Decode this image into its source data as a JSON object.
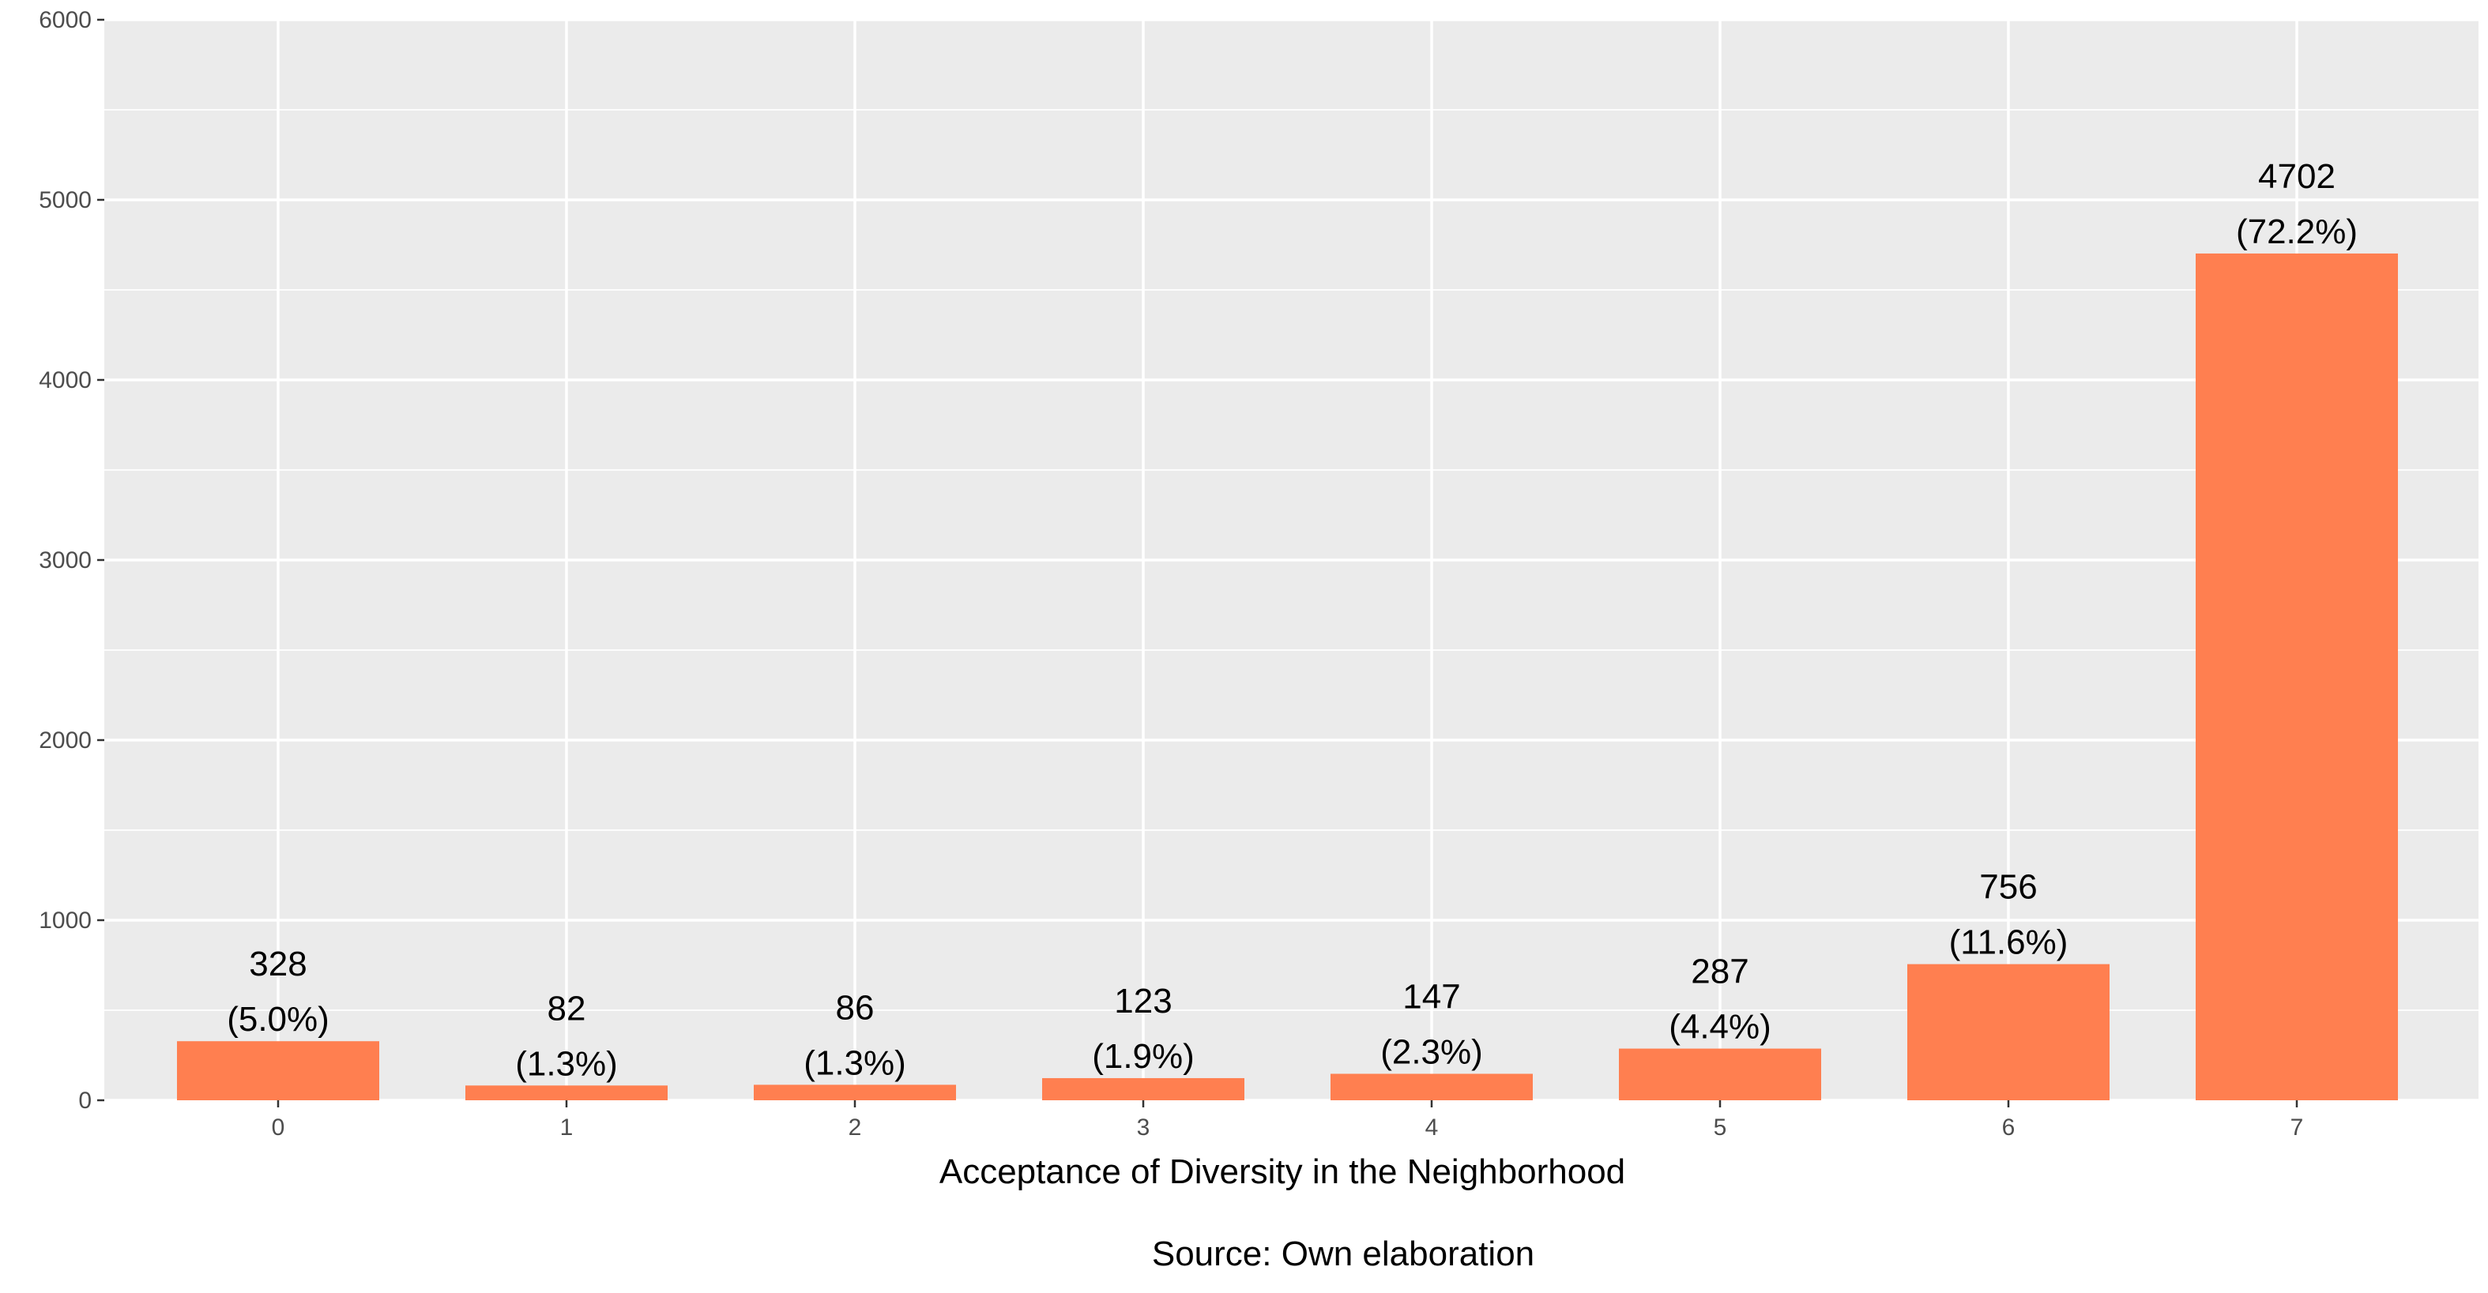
{
  "chart_data": {
    "type": "bar",
    "categories": [
      "0",
      "1",
      "2",
      "3",
      "4",
      "5",
      "6",
      "7"
    ],
    "values": [
      328,
      82,
      86,
      123,
      147,
      287,
      756,
      4702
    ],
    "percent_labels": [
      "(5.0%)",
      "(1.3%)",
      "(1.3%)",
      "(1.9%)",
      "(2.3%)",
      "(4.4%)",
      "(11.6%)",
      "(72.2%)"
    ],
    "title": "",
    "xlabel": "Acceptance of Diversity in the Neighborhood",
    "ylabel": "",
    "ylim": [
      0,
      6000
    ],
    "yticks": [
      0,
      1000,
      2000,
      3000,
      4000,
      5000,
      6000
    ],
    "grid": true,
    "bar_color": "#FF7F50",
    "panel_color": "#EBEBEB",
    "caption": "Source: Own elaboration"
  }
}
